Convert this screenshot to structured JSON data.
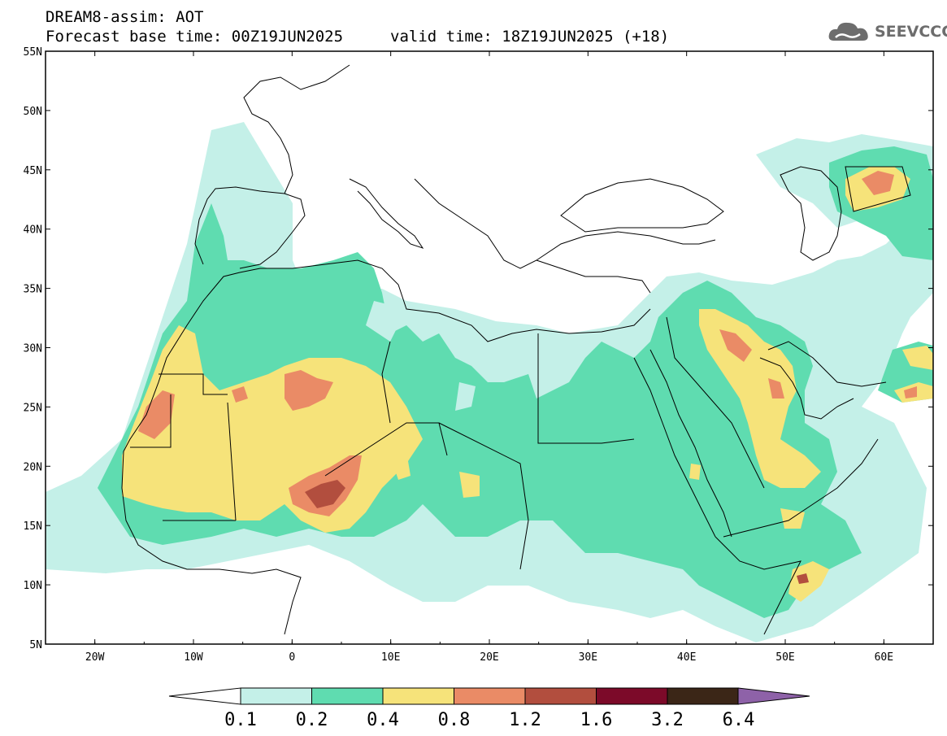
{
  "header": {
    "title": "DREAM8-assim: AOT",
    "base_time": "Forecast base time: 00Z19JUN2025",
    "valid_time": "valid time: 18Z19JUN2025 (+18)"
  },
  "logo": {
    "text": "SEEVCCC",
    "color": "#6d6d6d"
  },
  "axes": {
    "x_ticks": [
      "20W",
      "10W",
      "0",
      "10E",
      "20E",
      "30E",
      "40E",
      "50E",
      "60E"
    ],
    "y_ticks": [
      "55N",
      "50N",
      "45N",
      "40N",
      "35N",
      "30N",
      "25N",
      "20N",
      "15N",
      "10N",
      "5N"
    ],
    "lon_range": [
      -25,
      65
    ],
    "lat_range": [
      5,
      55
    ]
  },
  "colorbar": {
    "labels": [
      "0.1",
      "0.2",
      "0.4",
      "0.8",
      "1.2",
      "1.6",
      "3.2",
      "6.4"
    ],
    "colors": [
      "#c4f0e8",
      "#5fdcb0",
      "#f6e37a",
      "#ea8b66",
      "#b24e3e",
      "#7c0a29",
      "#3b2617",
      "#8e62a8"
    ],
    "under_color": "#ffffff"
  }
}
